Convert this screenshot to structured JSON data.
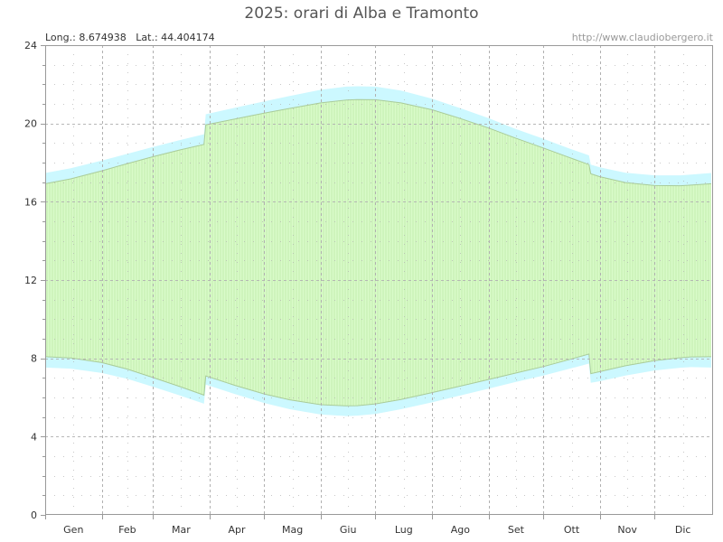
{
  "chart_data": {
    "type": "area",
    "title": "2025: orari di Alba e Tramonto",
    "info_left": "Long.: 8.674938   Lat.: 44.404174",
    "info_right": "http://www.claudiobergero.it",
    "ylim": [
      0,
      24
    ],
    "yticks": [
      {
        "value": 0,
        "label": "0"
      },
      {
        "value": 4,
        "label": "4"
      },
      {
        "value": 8,
        "label": "8"
      },
      {
        "value": 12,
        "label": "12"
      },
      {
        "value": 16,
        "label": "16"
      },
      {
        "value": 20,
        "label": "20"
      },
      {
        "value": 24,
        "label": "24"
      }
    ],
    "xlim": [
      1,
      366
    ],
    "months": [
      {
        "label": "Gen",
        "start": 1,
        "days": 31
      },
      {
        "label": "Feb",
        "start": 32,
        "days": 28
      },
      {
        "label": "Mar",
        "start": 60,
        "days": 31
      },
      {
        "label": "Apr",
        "start": 91,
        "days": 30
      },
      {
        "label": "Mag",
        "start": 121,
        "days": 31
      },
      {
        "label": "Giu",
        "start": 152,
        "days": 30
      },
      {
        "label": "Lug",
        "start": 182,
        "days": 31
      },
      {
        "label": "Ago",
        "start": 213,
        "days": 31
      },
      {
        "label": "Set",
        "start": 244,
        "days": 30
      },
      {
        "label": "Ott",
        "start": 274,
        "days": 31
      },
      {
        "label": "Nov",
        "start": 305,
        "days": 30
      },
      {
        "label": "Dic",
        "start": 335,
        "days": 31
      }
    ],
    "colors": {
      "daylight": "#d9fbc9",
      "daylight_hatch": "#c3eeb0",
      "twilight": "#ccf8ff",
      "grid": "#b0b0b0",
      "axis": "#999999",
      "edge": "#aacc99"
    },
    "series": [
      {
        "name": "",
        "role": "dawn",
        "x": [
          1,
          15,
          32,
          46,
          60,
          74,
          88,
          89,
          105,
          121,
          135,
          152,
          166,
          172,
          182,
          196,
          213,
          227,
          244,
          258,
          274,
          288,
          299,
          300,
          305,
          319,
          335,
          349,
          355,
          366
        ],
        "y": [
          7.53,
          7.47,
          7.25,
          6.95,
          6.55,
          6.13,
          5.68,
          6.66,
          6.17,
          5.72,
          5.4,
          5.13,
          5.05,
          5.07,
          5.16,
          5.4,
          5.75,
          6.07,
          6.45,
          6.77,
          7.12,
          7.46,
          7.73,
          6.75,
          6.83,
          7.12,
          7.38,
          7.52,
          7.55,
          7.53
        ]
      },
      {
        "name": "",
        "role": "sunrise",
        "x": [
          1,
          15,
          32,
          46,
          60,
          74,
          88,
          89,
          105,
          121,
          135,
          152,
          166,
          172,
          182,
          196,
          213,
          227,
          244,
          258,
          274,
          288,
          299,
          300,
          305,
          319,
          335,
          349,
          355,
          366
        ],
        "y": [
          8.08,
          8.02,
          7.78,
          7.45,
          7.02,
          6.58,
          6.12,
          7.1,
          6.62,
          6.18,
          5.88,
          5.63,
          5.57,
          5.58,
          5.67,
          5.9,
          6.25,
          6.55,
          6.92,
          7.23,
          7.58,
          7.93,
          8.22,
          7.22,
          7.32,
          7.62,
          7.88,
          8.03,
          8.07,
          8.08
        ]
      },
      {
        "name": "",
        "role": "sunset",
        "x": [
          1,
          15,
          32,
          46,
          60,
          74,
          88,
          89,
          105,
          121,
          135,
          152,
          166,
          172,
          182,
          196,
          213,
          227,
          244,
          258,
          274,
          288,
          299,
          300,
          305,
          319,
          335,
          349,
          355,
          366
        ],
        "y": [
          16.92,
          17.17,
          17.58,
          17.95,
          18.3,
          18.63,
          18.93,
          19.93,
          20.23,
          20.53,
          20.77,
          21.05,
          21.2,
          21.22,
          21.21,
          21.05,
          20.7,
          20.3,
          19.77,
          19.28,
          18.75,
          18.27,
          17.9,
          17.43,
          17.28,
          16.98,
          16.83,
          16.82,
          16.85,
          16.92
        ]
      },
      {
        "name": "",
        "role": "dusk",
        "x": [
          1,
          15,
          32,
          46,
          60,
          74,
          88,
          89,
          105,
          121,
          135,
          152,
          166,
          172,
          182,
          196,
          213,
          227,
          244,
          258,
          274,
          288,
          299,
          300,
          305,
          319,
          335,
          349,
          355,
          366
        ],
        "y": [
          17.47,
          17.71,
          18.1,
          18.45,
          18.8,
          19.13,
          19.45,
          20.47,
          20.8,
          21.13,
          21.4,
          21.72,
          21.88,
          21.9,
          21.88,
          21.68,
          21.27,
          20.83,
          20.27,
          19.75,
          19.22,
          18.73,
          18.37,
          17.9,
          17.76,
          17.48,
          17.35,
          17.35,
          17.39,
          17.47
        ]
      }
    ]
  }
}
